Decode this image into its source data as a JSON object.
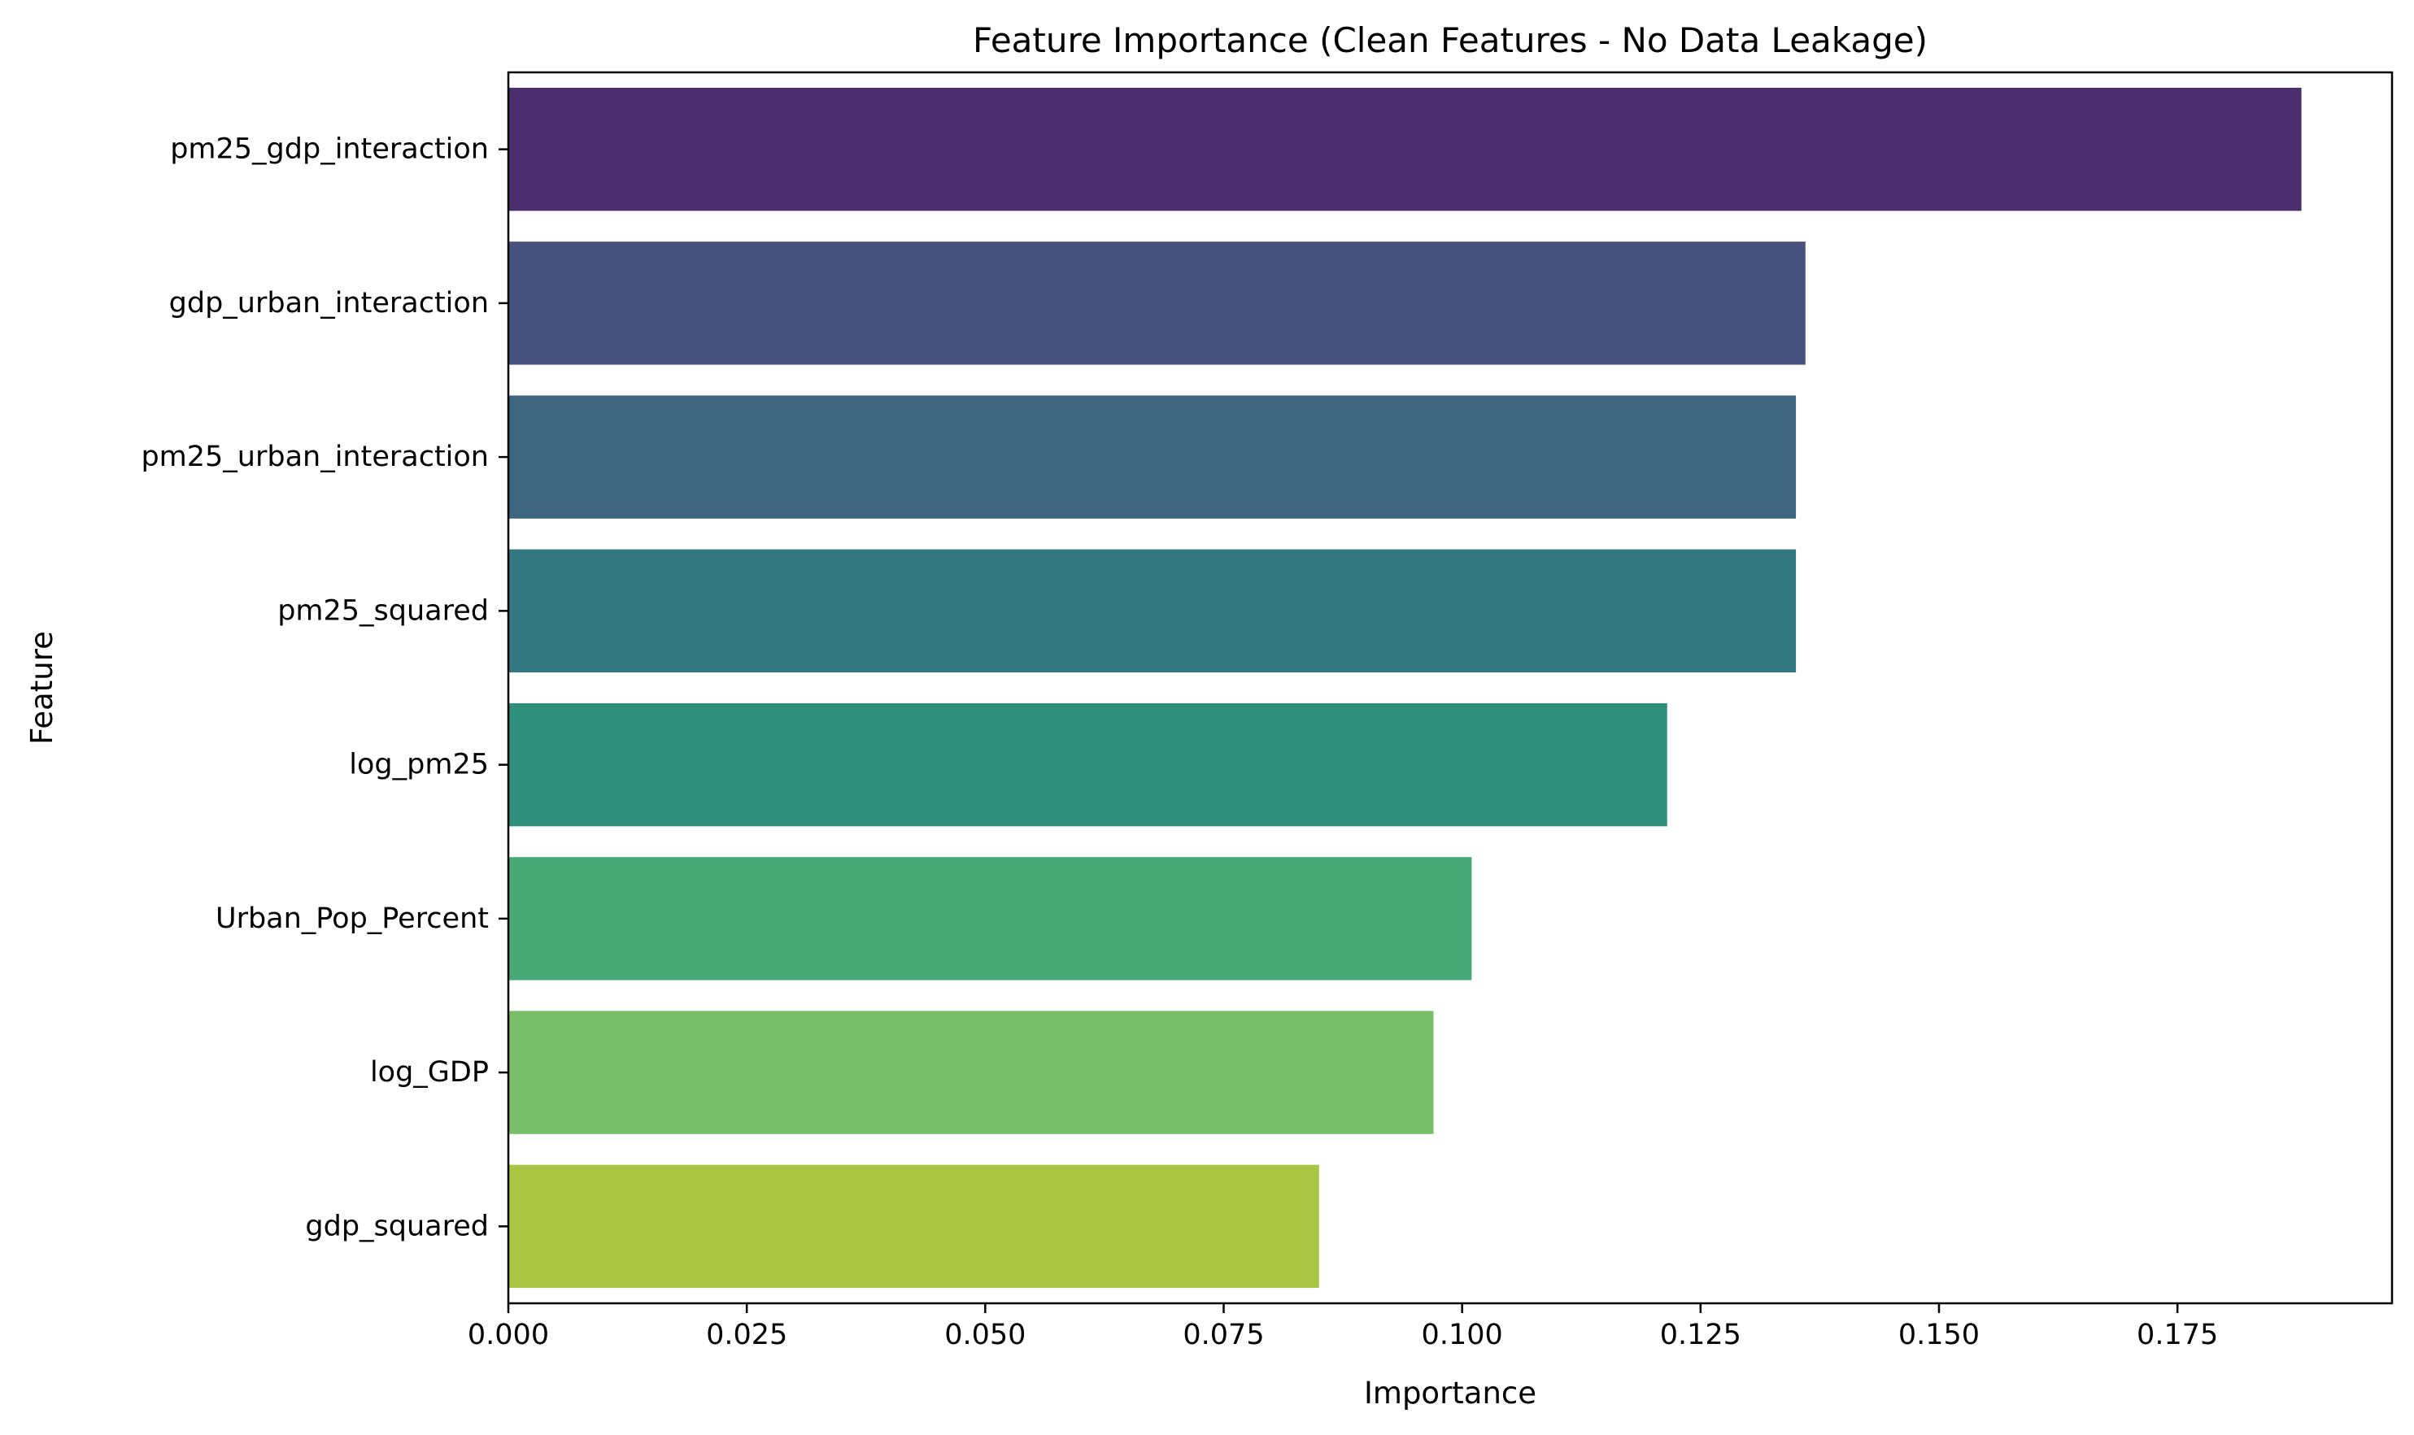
{
  "chart_data": {
    "type": "bar",
    "orientation": "horizontal",
    "title": "Feature Importance (Clean Features - No Data Leakage)",
    "xlabel": "Importance",
    "ylabel": "Feature",
    "xlim": [
      0,
      0.1975
    ],
    "xticks": [
      0.0,
      0.025,
      0.05,
      0.075,
      0.1,
      0.125,
      0.15,
      0.175
    ],
    "xtick_labels": [
      "0.000",
      "0.025",
      "0.050",
      "0.075",
      "0.100",
      "0.125",
      "0.150",
      "0.175"
    ],
    "grid": false,
    "legend": "none",
    "categories": [
      "pm25_gdp_interaction",
      "gdp_urban_interaction",
      "pm25_urban_interaction",
      "pm25_squared",
      "log_pm25",
      "Urban_Pop_Percent",
      "log_GDP",
      "gdp_squared"
    ],
    "values": [
      0.188,
      0.136,
      0.135,
      0.135,
      0.1215,
      0.101,
      0.097,
      0.085
    ],
    "colors": [
      "#4b2f6d",
      "#49527f",
      "#3f6680",
      "#33787e",
      "#2e8f7b",
      "#46a877",
      "#77bf66",
      "#a8c644"
    ]
  }
}
